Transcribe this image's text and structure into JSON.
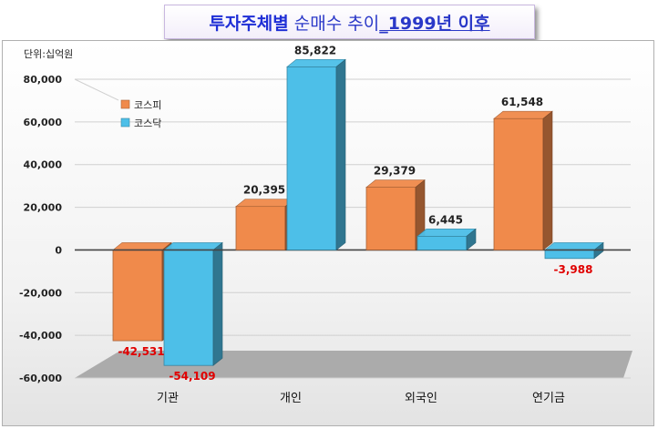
{
  "title": {
    "part1": "투자주체별",
    "part2": "순매수 추이",
    "part3": "_1999년 이후"
  },
  "chart_data": {
    "type": "bar",
    "unit_label": "단위:십억원",
    "categories": [
      "기관",
      "개인",
      "외국인",
      "연기금"
    ],
    "series": [
      {
        "name": "코스피",
        "values": [
          -42531,
          20395,
          29379,
          61548
        ],
        "color": "#f08a4b"
      },
      {
        "name": "코스닥",
        "values": [
          -54109,
          85822,
          6445,
          -3988
        ],
        "color": "#4dbfe8"
      }
    ],
    "data_labels": {
      "코스피": [
        "-42,531",
        "20,395",
        "29,379",
        "61,548"
      ],
      "코스닥": [
        "-54,109",
        "85,822",
        "6,445",
        "-3,988"
      ]
    },
    "ylim": [
      -60000,
      80000
    ],
    "yticks": [
      "80,000",
      "60,000",
      "40,000",
      "20,000",
      "0",
      "-20,000",
      "-40,000",
      "-60,000"
    ],
    "legend_position": "top-left",
    "grid": true,
    "style": "3d-column"
  }
}
